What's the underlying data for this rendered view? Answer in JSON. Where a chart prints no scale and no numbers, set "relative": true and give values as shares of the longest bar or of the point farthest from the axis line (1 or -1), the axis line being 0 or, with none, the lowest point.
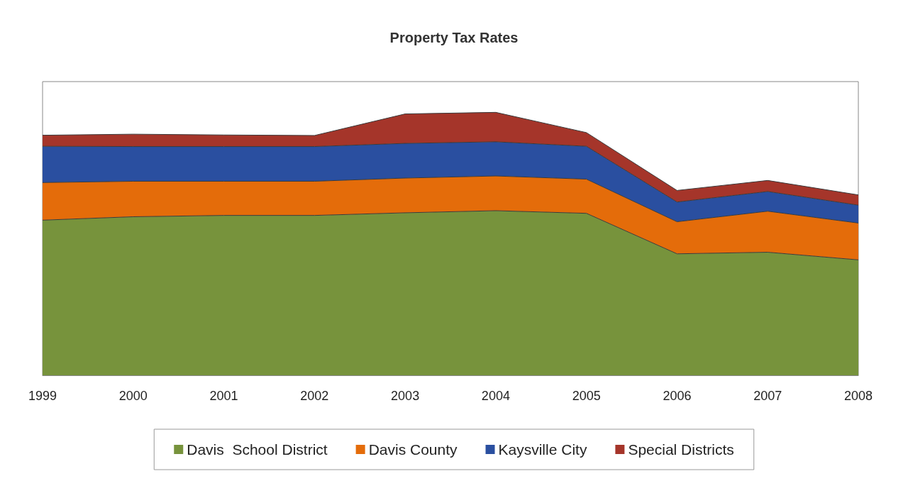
{
  "chart_data": {
    "type": "area",
    "title": "Property Tax Rates",
    "stacked": true,
    "relative": true,
    "legend": "bottom",
    "categories": [
      "1999",
      "2000",
      "2001",
      "2002",
      "2003",
      "2004",
      "2005",
      "2006",
      "2007",
      "2008"
    ],
    "series": [
      {
        "name": "Davis  School District",
        "color": "#77933c",
        "values": [
          0.59,
          0.603,
          0.608,
          0.608,
          0.618,
          0.626,
          0.616,
          0.462,
          0.468,
          0.439
        ]
      },
      {
        "name": "Davis County",
        "color": "#e46c0a",
        "values": [
          0.143,
          0.135,
          0.13,
          0.13,
          0.132,
          0.132,
          0.13,
          0.122,
          0.156,
          0.14
        ]
      },
      {
        "name": "Kaysville City",
        "color": "#2a4fa0",
        "values": [
          0.138,
          0.132,
          0.132,
          0.132,
          0.132,
          0.13,
          0.125,
          0.075,
          0.075,
          0.068
        ]
      },
      {
        "name": "Special Districts",
        "color": "#a5352a",
        "values": [
          0.042,
          0.047,
          0.044,
          0.042,
          0.112,
          0.112,
          0.052,
          0.044,
          0.042,
          0.039
        ]
      }
    ]
  }
}
